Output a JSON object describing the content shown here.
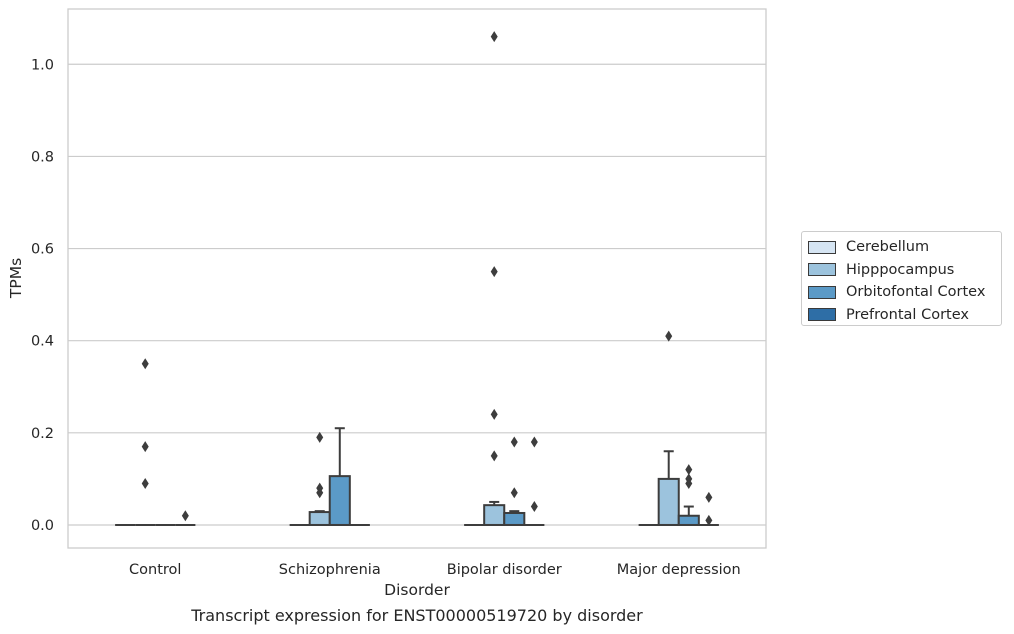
{
  "caption": "Transcript expression for ENST00000519720 by disorder",
  "chart_data": {
    "type": "box",
    "title": "",
    "xlabel": "Disorder",
    "ylabel": "TPMs",
    "ylim": [
      -0.05,
      1.12
    ],
    "yticks": [
      0.0,
      0.2,
      0.4,
      0.6,
      0.8,
      1.0
    ],
    "ytick_labels": [
      "0.0",
      "0.2",
      "0.4",
      "0.6",
      "0.8",
      "1.0"
    ],
    "grid": "horizontal",
    "legend_position": "right",
    "categories": [
      "Control",
      "Schizophrenia",
      "Bipolar disorder",
      "Major depression"
    ],
    "series": [
      {
        "name": "Cerebellum",
        "color": "#d6e5f3",
        "boxes": [
          {
            "q1": 0,
            "median": 0,
            "q3": 0,
            "whisker_low": 0,
            "whisker_high": 0,
            "outliers": []
          },
          {
            "q1": 0,
            "median": 0,
            "q3": 0,
            "whisker_low": 0,
            "whisker_high": 0,
            "outliers": []
          },
          {
            "q1": 0,
            "median": 0,
            "q3": 0,
            "whisker_low": 0,
            "whisker_high": 0,
            "outliers": []
          },
          {
            "q1": 0,
            "median": 0,
            "q3": 0,
            "whisker_low": 0,
            "whisker_high": 0,
            "outliers": []
          }
        ]
      },
      {
        "name": "Hipppocampus",
        "color": "#9cc3dd",
        "boxes": [
          {
            "q1": 0,
            "median": 0,
            "q3": 0,
            "whisker_low": 0,
            "whisker_high": 0,
            "outliers": [
              0.35,
              0.17,
              0.09
            ]
          },
          {
            "q1": 0,
            "median": 0,
            "q3": 0.028,
            "whisker_low": 0,
            "whisker_high": 0.03,
            "outliers": [
              0.19,
              0.08,
              0.07
            ]
          },
          {
            "q1": 0,
            "median": 0,
            "q3": 0.043,
            "whisker_low": 0,
            "whisker_high": 0.05,
            "outliers": [
              1.06,
              0.55,
              0.24,
              0.15
            ]
          },
          {
            "q1": 0,
            "median": 0,
            "q3": 0.1,
            "whisker_low": 0,
            "whisker_high": 0.16,
            "outliers": [
              0.41
            ]
          }
        ]
      },
      {
        "name": "Orbitofontal Cortex",
        "color": "#5b9ac7",
        "boxes": [
          {
            "q1": 0,
            "median": 0,
            "q3": 0,
            "whisker_low": 0,
            "whisker_high": 0,
            "outliers": []
          },
          {
            "q1": 0,
            "median": 0,
            "q3": 0.106,
            "whisker_low": 0,
            "whisker_high": 0.21,
            "outliers": []
          },
          {
            "q1": 0,
            "median": 0,
            "q3": 0.026,
            "whisker_low": 0,
            "whisker_high": 0.03,
            "outliers": [
              0.18,
              0.07
            ]
          },
          {
            "q1": 0,
            "median": 0,
            "q3": 0.02,
            "whisker_low": 0,
            "whisker_high": 0.04,
            "outliers": [
              0.12,
              0.1,
              0.09
            ]
          }
        ]
      },
      {
        "name": "Prefrontal Cortex",
        "color": "#2e6ea6",
        "boxes": [
          {
            "q1": 0,
            "median": 0,
            "q3": 0,
            "whisker_low": 0,
            "whisker_high": 0,
            "outliers": [
              0.02
            ]
          },
          {
            "q1": 0,
            "median": 0,
            "q3": 0,
            "whisker_low": 0,
            "whisker_high": 0,
            "outliers": []
          },
          {
            "q1": 0,
            "median": 0,
            "q3": 0,
            "whisker_low": 0,
            "whisker_high": 0,
            "outliers": [
              0.18,
              0.04
            ]
          },
          {
            "q1": 0,
            "median": 0,
            "q3": 0,
            "whisker_low": 0,
            "whisker_high": 0,
            "outliers": [
              0.06,
              0.01
            ]
          }
        ]
      }
    ]
  }
}
